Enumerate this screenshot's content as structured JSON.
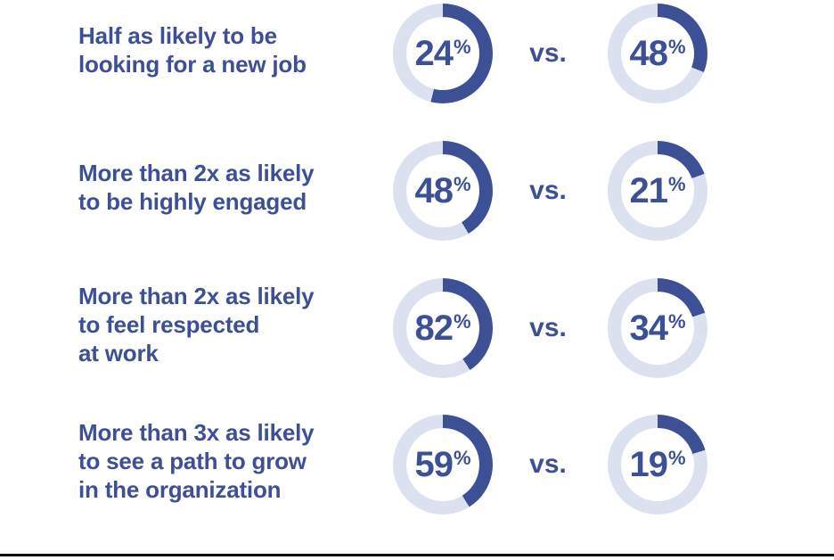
{
  "meta": {
    "background_color": "#ffffff",
    "accent_color": "#3e5095",
    "ring_color": "#dce1ef",
    "bottom_rule_color": "#000000"
  },
  "chart_data": {
    "type": "pie",
    "subtype": "donut-comparison",
    "title": "",
    "legend": "none",
    "rows": [
      {
        "label": "Half as likely to be looking for a new job",
        "label_lines": [
          "Half as likely to be",
          "looking for a new job"
        ],
        "vs": "vs.",
        "left": {
          "value": "24",
          "symbol": "%",
          "pct": 24,
          "arc_deg": 194
        },
        "right": {
          "value": "48",
          "symbol": "%",
          "pct": 48,
          "arc_deg": 112
        }
      },
      {
        "label": "More than 2x as likely to be highly engaged",
        "label_lines": [
          "More than 2x as likely",
          "to be highly engaged"
        ],
        "vs": "vs.",
        "left": {
          "value": "48",
          "symbol": "%",
          "pct": 48,
          "arc_deg": 149
        },
        "right": {
          "value": "21",
          "symbol": "%",
          "pct": 21,
          "arc_deg": 70
        }
      },
      {
        "label": "More than 2x as likely to feel respected at work",
        "label_lines": [
          "More than 2x as likely",
          "to feel respected",
          "at work"
        ],
        "vs": "vs.",
        "left": {
          "value": "82",
          "symbol": "%",
          "pct": 82,
          "arc_deg": 147
        },
        "right": {
          "value": "34",
          "symbol": "%",
          "pct": 34,
          "arc_deg": 72
        }
      },
      {
        "label": "More than 3x as likely to see a path to grow in the organization",
        "label_lines": [
          "More than 3x as likely",
          "to see a path to grow",
          "in the organization"
        ],
        "vs": "vs.",
        "left": {
          "value": "59",
          "symbol": "%",
          "pct": 59,
          "arc_deg": 148
        },
        "right": {
          "value": "19",
          "symbol": "%",
          "pct": 19,
          "arc_deg": 73
        }
      }
    ]
  }
}
